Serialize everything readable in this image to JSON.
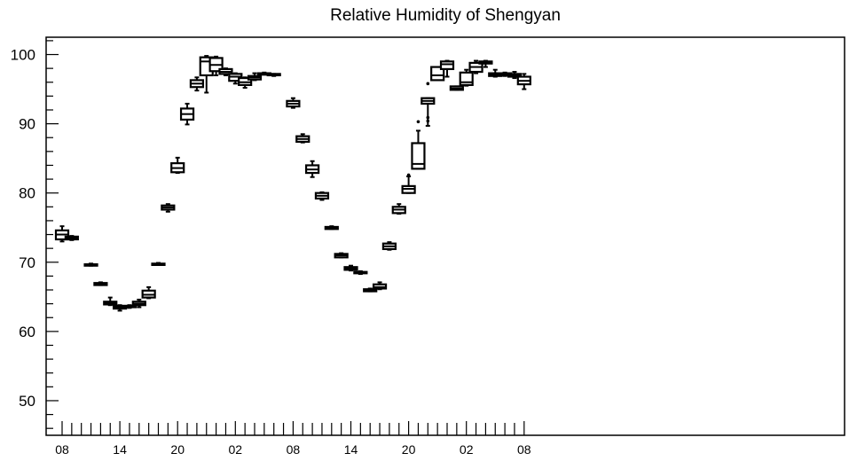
{
  "chart_data": {
    "type": "box",
    "title": "Relative Humidity of Shengyan",
    "xlabel": "",
    "ylabel": "",
    "ylim": [
      45,
      102.5
    ],
    "yticks": [
      50,
      60,
      70,
      80,
      90,
      100
    ],
    "xticks": [
      {
        "i": 0,
        "label": "08"
      },
      {
        "i": 6,
        "label": "14"
      },
      {
        "i": 12,
        "label": "20"
      },
      {
        "i": 18,
        "label": "02"
      },
      {
        "i": 24,
        "label": "08"
      },
      {
        "i": 30,
        "label": "14"
      },
      {
        "i": 36,
        "label": "20"
      },
      {
        "i": 42,
        "label": "02"
      },
      {
        "i": 48,
        "label": "08"
      }
    ],
    "x_count": 49,
    "grid": false,
    "boxes": [
      {
        "i": 0,
        "min": 73.0,
        "q1": 73.3,
        "median": 74.0,
        "q3": 74.6,
        "max": 75.2,
        "outliers": []
      },
      {
        "i": 1,
        "min": 73.2,
        "q1": 73.3,
        "median": 73.5,
        "q3": 73.7,
        "max": 73.8,
        "outliers": []
      },
      {
        "i": 3,
        "min": 69.5,
        "q1": 69.5,
        "median": 69.6,
        "q3": 69.7,
        "max": 69.8,
        "outliers": []
      },
      {
        "i": 4,
        "min": 66.7,
        "q1": 66.7,
        "median": 66.9,
        "q3": 67.0,
        "max": 67.1,
        "outliers": []
      },
      {
        "i": 5,
        "min": 63.8,
        "q1": 63.9,
        "median": 64.1,
        "q3": 64.3,
        "max": 64.9,
        "outliers": []
      },
      {
        "i": 6,
        "min": 63.0,
        "q1": 63.3,
        "median": 63.5,
        "q3": 63.7,
        "max": 63.8,
        "outliers": []
      },
      {
        "i": 7,
        "min": 63.4,
        "q1": 63.5,
        "median": 63.6,
        "q3": 63.7,
        "max": 63.8,
        "outliers": []
      },
      {
        "i": 8,
        "min": 63.5,
        "q1": 63.8,
        "median": 64.0,
        "q3": 64.3,
        "max": 64.6,
        "outliers": []
      },
      {
        "i": 9,
        "min": 64.8,
        "q1": 64.9,
        "median": 65.3,
        "q3": 65.9,
        "max": 66.4,
        "outliers": []
      },
      {
        "i": 10,
        "min": 69.6,
        "q1": 69.6,
        "median": 69.7,
        "q3": 69.8,
        "max": 69.9,
        "outliers": []
      },
      {
        "i": 11,
        "min": 77.3,
        "q1": 77.6,
        "median": 77.9,
        "q3": 78.2,
        "max": 78.4,
        "outliers": []
      },
      {
        "i": 12,
        "min": 82.9,
        "q1": 83.0,
        "median": 83.6,
        "q3": 84.3,
        "max": 85.1,
        "outliers": []
      },
      {
        "i": 13,
        "min": 89.9,
        "q1": 90.6,
        "median": 91.4,
        "q3": 92.2,
        "max": 92.9,
        "outliers": []
      },
      {
        "i": 14,
        "min": 94.8,
        "q1": 95.3,
        "median": 95.8,
        "q3": 96.3,
        "max": 96.7,
        "outliers": []
      },
      {
        "i": 15,
        "min": 94.5,
        "q1": 97.0,
        "median": 99.0,
        "q3": 99.6,
        "max": 99.8,
        "outliers": []
      },
      {
        "i": 16,
        "min": 97.0,
        "q1": 97.6,
        "median": 98.5,
        "q3": 99.5,
        "max": 99.7,
        "outliers": []
      },
      {
        "i": 17,
        "min": 97.0,
        "q1": 97.2,
        "median": 97.5,
        "q3": 97.9,
        "max": 98.0,
        "outliers": []
      },
      {
        "i": 18,
        "min": 95.8,
        "q1": 96.2,
        "median": 96.8,
        "q3": 97.2,
        "max": 97.3,
        "outliers": []
      },
      {
        "i": 19,
        "min": 95.2,
        "q1": 95.6,
        "median": 96.0,
        "q3": 96.6,
        "max": 96.7,
        "outliers": []
      },
      {
        "i": 20,
        "min": 96.3,
        "q1": 96.4,
        "median": 96.7,
        "q3": 96.9,
        "max": 97.3,
        "outliers": []
      },
      {
        "i": 21,
        "min": 97.1,
        "q1": 97.1,
        "median": 97.2,
        "q3": 97.3,
        "max": 97.4,
        "outliers": []
      },
      {
        "i": 22,
        "min": 96.9,
        "q1": 97.0,
        "median": 97.1,
        "q3": 97.2,
        "max": 97.2,
        "outliers": []
      },
      {
        "i": 24,
        "min": 92.3,
        "q1": 92.5,
        "median": 92.9,
        "q3": 93.3,
        "max": 93.7,
        "outliers": []
      },
      {
        "i": 25,
        "min": 87.3,
        "q1": 87.4,
        "median": 87.8,
        "q3": 88.2,
        "max": 88.5,
        "outliers": []
      },
      {
        "i": 26,
        "min": 82.3,
        "q1": 82.9,
        "median": 83.4,
        "q3": 84.0,
        "max": 84.6,
        "outliers": []
      },
      {
        "i": 27,
        "min": 79.0,
        "q1": 79.2,
        "median": 79.6,
        "q3": 80.0,
        "max": 80.1,
        "outliers": []
      },
      {
        "i": 28,
        "min": 74.8,
        "q1": 74.8,
        "median": 75.0,
        "q3": 75.1,
        "max": 75.2,
        "outliers": []
      },
      {
        "i": 29,
        "min": 70.7,
        "q1": 70.7,
        "median": 71.0,
        "q3": 71.2,
        "max": 71.3,
        "outliers": []
      },
      {
        "i": 30,
        "min": 68.8,
        "q1": 68.9,
        "median": 69.1,
        "q3": 69.3,
        "max": 69.5,
        "outliers": []
      },
      {
        "i": 31,
        "min": 68.3,
        "q1": 68.4,
        "median": 68.5,
        "q3": 68.6,
        "max": 68.7,
        "outliers": []
      },
      {
        "i": 32,
        "min": 65.8,
        "q1": 65.8,
        "median": 66.0,
        "q3": 66.1,
        "max": 66.2,
        "outliers": []
      },
      {
        "i": 33,
        "min": 66.1,
        "q1": 66.2,
        "median": 66.4,
        "q3": 66.8,
        "max": 67.1,
        "outliers": []
      },
      {
        "i": 34,
        "min": 71.8,
        "q1": 71.9,
        "median": 72.3,
        "q3": 72.7,
        "max": 72.9,
        "outliers": []
      },
      {
        "i": 35,
        "min": 77.0,
        "q1": 77.1,
        "median": 77.6,
        "q3": 78.0,
        "max": 78.4,
        "outliers": []
      },
      {
        "i": 36,
        "min": 80.0,
        "q1": 80.0,
        "median": 80.6,
        "q3": 81.0,
        "max": 82.4,
        "outliers": [
          82.6
        ]
      },
      {
        "i": 37,
        "min": 83.5,
        "q1": 83.5,
        "median": 84.2,
        "q3": 87.2,
        "max": 89.0,
        "outliers": [
          90.3
        ]
      },
      {
        "i": 38,
        "min": 89.7,
        "q1": 92.9,
        "median": 93.3,
        "q3": 93.7,
        "max": 93.7,
        "outliers": [
          90.4,
          90.9,
          95.8
        ]
      },
      {
        "i": 39,
        "min": 96.3,
        "q1": 96.3,
        "median": 97.0,
        "q3": 98.2,
        "max": 98.2,
        "outliers": []
      },
      {
        "i": 40,
        "min": 96.8,
        "q1": 97.9,
        "median": 98.6,
        "q3": 99.0,
        "max": 99.1,
        "outliers": []
      },
      {
        "i": 41,
        "min": 94.9,
        "q1": 94.9,
        "median": 95.1,
        "q3": 95.4,
        "max": 95.4,
        "outliers": []
      },
      {
        "i": 42,
        "min": 95.5,
        "q1": 95.6,
        "median": 96.0,
        "q3": 97.4,
        "max": 97.8,
        "outliers": []
      },
      {
        "i": 43,
        "min": 97.3,
        "q1": 97.5,
        "median": 98.2,
        "q3": 98.8,
        "max": 99.1,
        "outliers": []
      },
      {
        "i": 44,
        "min": 98.2,
        "q1": 98.7,
        "median": 98.9,
        "q3": 99.0,
        "max": 99.1,
        "outliers": []
      },
      {
        "i": 45,
        "min": 96.8,
        "q1": 96.9,
        "median": 97.1,
        "q3": 97.3,
        "max": 97.8,
        "outliers": []
      },
      {
        "i": 46,
        "min": 96.9,
        "q1": 97.0,
        "median": 97.1,
        "q3": 97.3,
        "max": 97.4,
        "outliers": []
      },
      {
        "i": 47,
        "min": 96.6,
        "q1": 96.8,
        "median": 97.0,
        "q3": 97.2,
        "max": 97.5,
        "outliers": []
      },
      {
        "i": 48,
        "min": 95.0,
        "q1": 95.7,
        "median": 96.2,
        "q3": 96.8,
        "max": 97.2,
        "outliers": []
      }
    ]
  }
}
